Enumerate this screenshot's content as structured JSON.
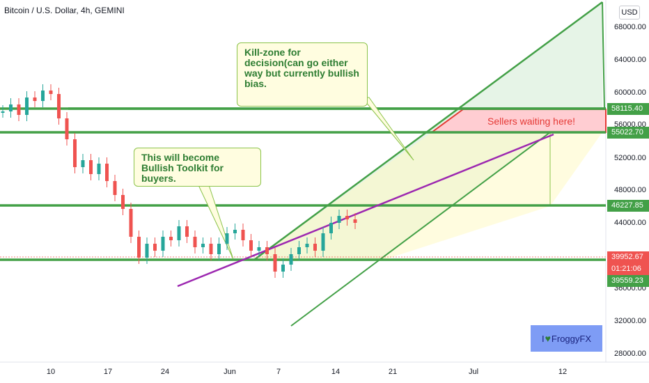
{
  "header": {
    "symbol_title": "Bitcoin / U.S. Dollar, 4h, GEMINI",
    "currency": "USD"
  },
  "chart_data": {
    "type": "candlestick",
    "title": "Bitcoin / U.S. Dollar, 4h, GEMINI",
    "y_ticks": [
      "68000.00",
      "64000.00",
      "60000.00",
      "56000.00",
      "52000.00",
      "48000.00",
      "44000.00",
      "40000.00",
      "36000.00",
      "32000.00",
      "28000.00"
    ],
    "x_ticks": [
      "10",
      "17",
      "24",
      "Jun",
      "7",
      "14",
      "21",
      "Jul",
      "12"
    ],
    "ylim": [
      28000,
      69000
    ],
    "price_labels": [
      {
        "text": "58115.40",
        "color": "#43a047"
      },
      {
        "text": "55022.70",
        "color": "#43a047"
      },
      {
        "text": "46227.85",
        "color": "#43a047"
      },
      {
        "text": "39952.67",
        "color": "#ef5350"
      },
      {
        "text": "01:21:06",
        "color": "#ef5350"
      },
      {
        "text": "39559.23",
        "color": "#43a047"
      }
    ],
    "horizontal_levels": [
      58115.4,
      55022.7,
      46227.85,
      39559.23
    ],
    "candles_summary": {
      "approx_series": [
        56000,
        57000,
        55500,
        58000,
        57500,
        59000,
        58500,
        55000,
        52000,
        48000,
        49000,
        47000,
        48500,
        46000,
        44000,
        42000,
        38000,
        35000,
        37000,
        36000,
        38000,
        37500,
        39500,
        38000,
        36500,
        37000,
        35500,
        37000,
        38500,
        39000,
        37500,
        36000,
        36500,
        35500,
        33000,
        34000,
        35500,
        36500,
        37000,
        36000,
        38500,
        40000,
        41000,
        40500,
        40000
      ]
    },
    "annotations": [
      {
        "text": "Kill-zone for decision(can go either way but currently bullish bias."
      },
      {
        "text": "This will become Bullish Toolkit for buyers."
      },
      {
        "text": "Sellers waiting here!"
      }
    ],
    "colors": {
      "level": "#43a047",
      "trend": "#9c27b0",
      "up": "#26a69a",
      "down": "#ef5350",
      "zone": "#ffcdd2"
    }
  },
  "logo": {
    "prefix": "I",
    "heart": "♥",
    "brand": "FroggyFX"
  }
}
